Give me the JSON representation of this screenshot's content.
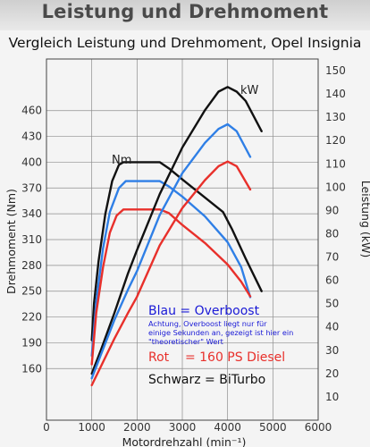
{
  "header": {
    "title": "Leistung und Drehmoment",
    "subtitle": "Vergleich Leistung und Drehmoment, Opel Insignia"
  },
  "legend": {
    "blue": "Blau = Overboost",
    "note": "Achtung, Overboost liegt nur für einige Sekunden an, gezeigt ist hier ein \"theoretischer\" Wert",
    "red": "Rot    = 160 PS Diesel",
    "black": "Schwarz = BiTurbo"
  },
  "chart_data": {
    "type": "line",
    "xlabel": "Motordrehzahl (min⁻¹)",
    "ylabel_left": "Drehmoment (Nm)",
    "ylabel_right": "Leistung (kW)",
    "curve_labels": {
      "torque": "Nm",
      "power": "kW"
    },
    "xlim": [
      0,
      6000
    ],
    "x_ticks": [
      0,
      1000,
      2000,
      3000,
      4000,
      5000,
      6000
    ],
    "ylim_left": [
      100,
      520
    ],
    "y_ticks_left": [
      160,
      190,
      220,
      250,
      280,
      310,
      340,
      370,
      400,
      430,
      460
    ],
    "ylim_right": [
      0,
      155
    ],
    "y_ticks_right": [
      10,
      20,
      30,
      40,
      50,
      60,
      70,
      80,
      90,
      100,
      110,
      120,
      130,
      140,
      150
    ],
    "grid": true,
    "colors": {
      "black": "#111111",
      "blue": "#2f7fe6",
      "red": "#e8302b"
    },
    "series": [
      {
        "color": "black",
        "axis": "left",
        "x": [
          1000,
          1050,
          1150,
          1300,
          1450,
          1600,
          1700,
          2000,
          2500,
          2700,
          3000,
          3500,
          3900,
          4100,
          4400,
          4750
        ],
        "y": [
          193,
          236,
          285,
          340,
          378,
          397,
          400,
          400,
          400,
          393,
          380,
          359,
          342,
          322,
          288,
          250
        ]
      },
      {
        "color": "blue",
        "axis": "left",
        "x": [
          1000,
          1100,
          1250,
          1400,
          1600,
          1750,
          2000,
          2500,
          2700,
          3000,
          3500,
          4000,
          4300,
          4500
        ],
        "y": [
          175,
          238,
          300,
          342,
          370,
          378,
          378,
          378,
          372,
          360,
          337,
          307,
          278,
          243
        ]
      },
      {
        "color": "red",
        "axis": "left",
        "x": [
          1000,
          1100,
          1250,
          1400,
          1550,
          1700,
          2000,
          2500,
          2700,
          3000,
          3500,
          4000,
          4300,
          4500
        ],
        "y": [
          165,
          225,
          278,
          318,
          338,
          345,
          345,
          345,
          341,
          327,
          306,
          281,
          261,
          244
        ]
      },
      {
        "color": "black",
        "axis": "right",
        "x": [
          1000,
          1200,
          1500,
          1800,
          2000,
          2500,
          3000,
          3500,
          3800,
          4000,
          4200,
          4400,
          4750
        ],
        "y": [
          20,
          30,
          46,
          63,
          73,
          97,
          117,
          133,
          141,
          143,
          141,
          137,
          124
        ]
      },
      {
        "color": "blue",
        "axis": "right",
        "x": [
          1000,
          1200,
          1500,
          1800,
          2000,
          2500,
          3000,
          3500,
          3800,
          4000,
          4200,
          4500
        ],
        "y": [
          18,
          28,
          43,
          56,
          64,
          88,
          106,
          119,
          125,
          127,
          124,
          113
        ]
      },
      {
        "color": "red",
        "axis": "right",
        "x": [
          1000,
          1200,
          1500,
          1800,
          2000,
          2500,
          3000,
          3500,
          3800,
          4000,
          4200,
          4500
        ],
        "y": [
          15,
          23,
          35,
          46,
          53,
          75,
          91,
          103,
          109,
          111,
          109,
          99
        ]
      }
    ]
  }
}
